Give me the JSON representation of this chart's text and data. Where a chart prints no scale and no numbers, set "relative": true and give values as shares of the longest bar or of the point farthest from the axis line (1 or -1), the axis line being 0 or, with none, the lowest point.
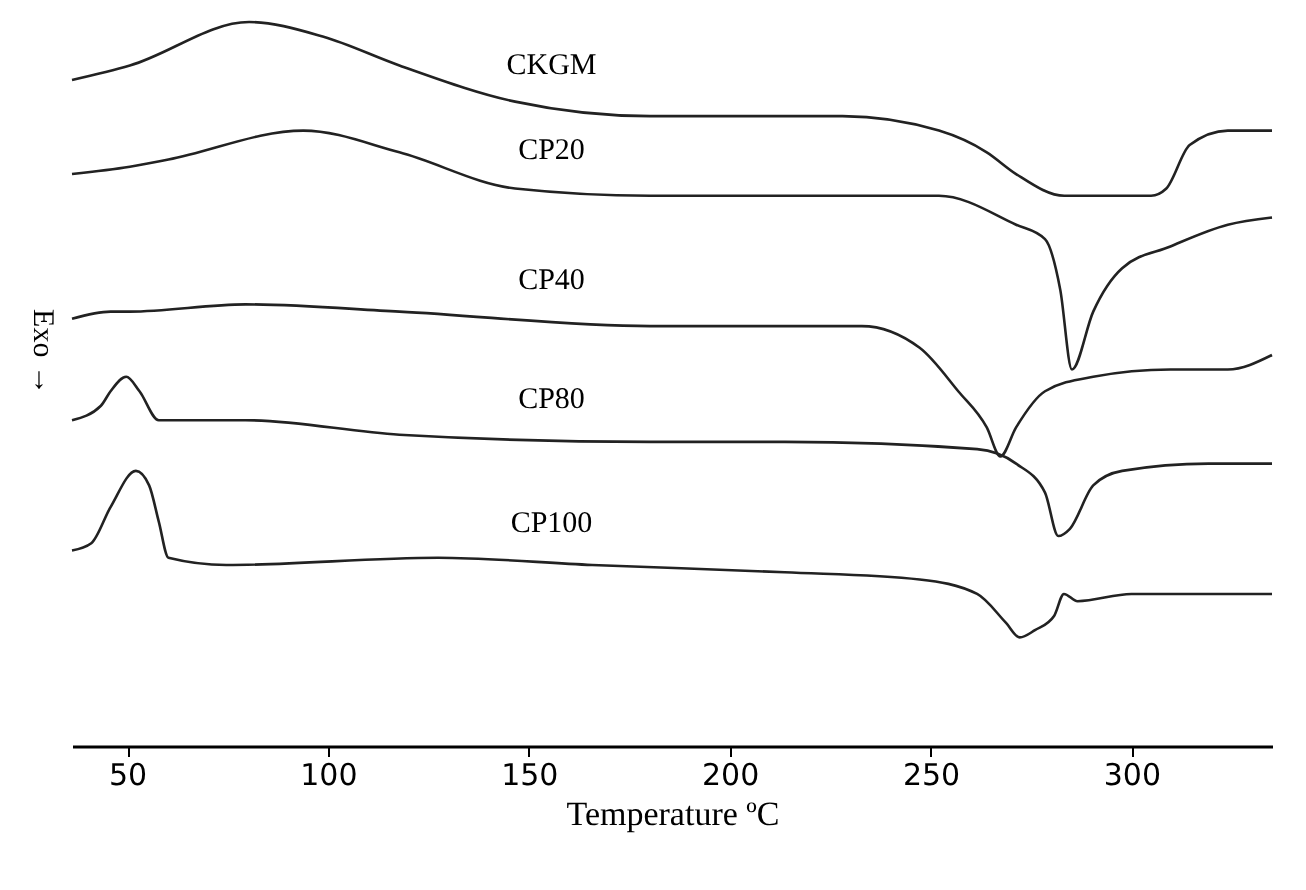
{
  "chart_data": {
    "type": "line",
    "relative": true,
    "xlabel": "Temperature ºC",
    "xlim": [
      36.3,
      335
    ],
    "xticks": [
      50,
      100,
      150,
      200,
      250,
      300
    ],
    "marker": "none",
    "line_style": "solid",
    "annotations": [
      "Exo →"
    ],
    "series": [
      {
        "name": "CKGM",
        "color": "#222222",
        "x": [
          36.3,
          50.7,
          80.4,
          98.7,
          117.8,
          146.6,
          180.2,
          228.1,
          252.1,
          264,
          271.3,
          283.3,
          290.5,
          304.9,
          308.7,
          314.5,
          324,
          335
        ],
        "values": [
          0.92,
          0.94,
          1.0,
          0.98,
          0.94,
          0.89,
          0.87,
          0.87,
          0.85,
          0.82,
          0.79,
          0.76,
          0.76,
          0.76,
          0.77,
          0.83,
          0.85,
          0.85
        ]
      },
      {
        "name": "CP20",
        "color": "#222222",
        "x": [
          36.3,
          50.7,
          60.3,
          93.9,
          117.8,
          146.6,
          180.2,
          228.1,
          252.1,
          271.3,
          278.5,
          282.3,
          285.2,
          290.5,
          297.7,
          309.7,
          324,
          335
        ],
        "values": [
          0.79,
          0.8,
          0.81,
          0.85,
          0.82,
          0.77,
          0.76,
          0.76,
          0.76,
          0.72,
          0.7,
          0.63,
          0.52,
          0.6,
          0.66,
          0.69,
          0.72,
          0.73
        ]
      },
      {
        "name": "CP40",
        "color": "#222222",
        "x": [
          36.3,
          45.9,
          50.7,
          79.5,
          117.8,
          180.2,
          232.9,
          247.3,
          256.9,
          264,
          267.4,
          271.3,
          278.5,
          290.5,
          309.7,
          324,
          335
        ],
        "values": [
          0.59,
          0.6,
          0.6,
          0.61,
          0.6,
          0.58,
          0.58,
          0.55,
          0.49,
          0.44,
          0.4,
          0.44,
          0.49,
          0.51,
          0.52,
          0.52,
          0.54
        ]
      },
      {
        "name": "CP80",
        "color": "#222222",
        "x": [
          36.3,
          43.5,
          45.9,
          49.8,
          53.1,
          57.9,
          79.5,
          117.8,
          180.2,
          213.7,
          261.6,
          271.3,
          278.5,
          281.8,
          284.7,
          290.5,
          297.7,
          319.2,
          335
        ],
        "values": [
          0.45,
          0.47,
          0.49,
          0.51,
          0.49,
          0.45,
          0.45,
          0.43,
          0.42,
          0.42,
          0.41,
          0.39,
          0.35,
          0.29,
          0.3,
          0.36,
          0.38,
          0.39,
          0.39
        ]
      },
      {
        "name": "CP100",
        "color": "#222222",
        "x": [
          36.3,
          41.1,
          45.9,
          52.2,
          55.5,
          57.9,
          60.3,
          74.7,
          127.4,
          165.8,
          213.7,
          247.3,
          261.6,
          268.8,
          272.2,
          276,
          280.8,
          283.2,
          286.6,
          300,
          335
        ],
        "values": [
          0.27,
          0.28,
          0.33,
          0.38,
          0.36,
          0.31,
          0.26,
          0.25,
          0.26,
          0.25,
          0.24,
          0.23,
          0.21,
          0.17,
          0.15,
          0.16,
          0.18,
          0.21,
          0.2,
          0.21,
          0.21
        ]
      }
    ]
  }
}
